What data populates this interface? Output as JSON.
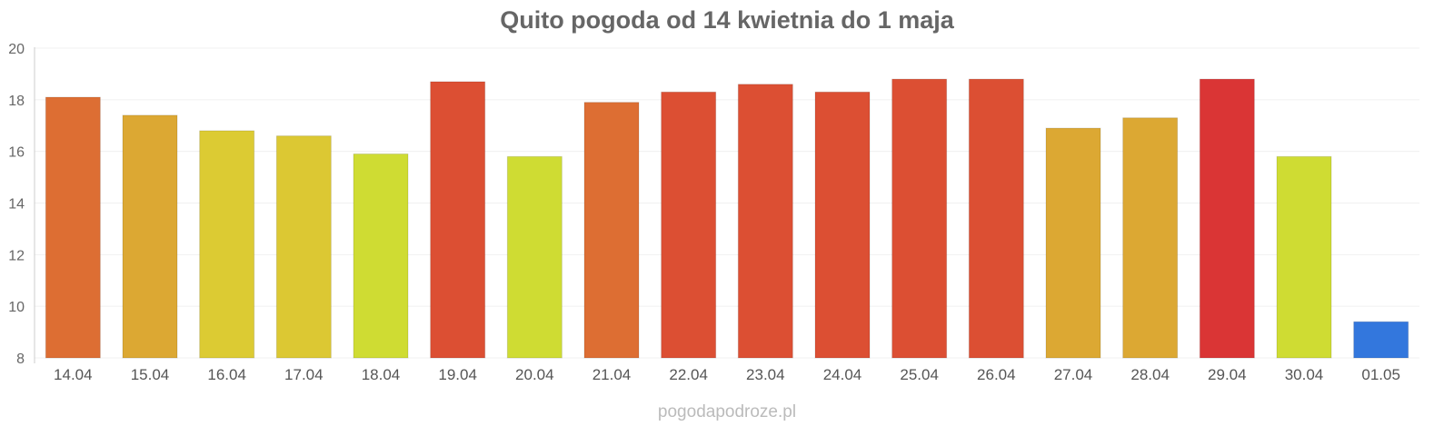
{
  "chart_data": {
    "type": "bar",
    "title": "Quito pogoda od 14 kwietnia do 1 maja",
    "credit": "pogodapodroze.pl",
    "xlabel": "",
    "ylabel": "",
    "ylim": [
      8,
      20
    ],
    "yticks": [
      8,
      10,
      12,
      14,
      16,
      18,
      20
    ],
    "grid": true,
    "categories": [
      "14.04",
      "15.04",
      "16.04",
      "17.04",
      "18.04",
      "19.04",
      "20.04",
      "21.04",
      "22.04",
      "23.04",
      "24.04",
      "25.04",
      "26.04",
      "27.04",
      "28.04",
      "29.04",
      "30.04",
      "01.05"
    ],
    "values": [
      18.1,
      17.4,
      16.8,
      16.6,
      15.9,
      18.7,
      15.8,
      17.9,
      18.3,
      18.6,
      18.3,
      18.8,
      18.8,
      16.9,
      17.3,
      18.8,
      15.8,
      9.4
    ],
    "colors": [
      "#dd6e33",
      "#dca833",
      "#dccb33",
      "#dcc833",
      "#cfdc33",
      "#dc4f33",
      "#cfdc33",
      "#dd6e33",
      "#dc4f33",
      "#dc4f33",
      "#dc4f33",
      "#dc4f33",
      "#dc4f33",
      "#dca833",
      "#dca833",
      "#da3535",
      "#cfdc33",
      "#3377dd"
    ]
  }
}
